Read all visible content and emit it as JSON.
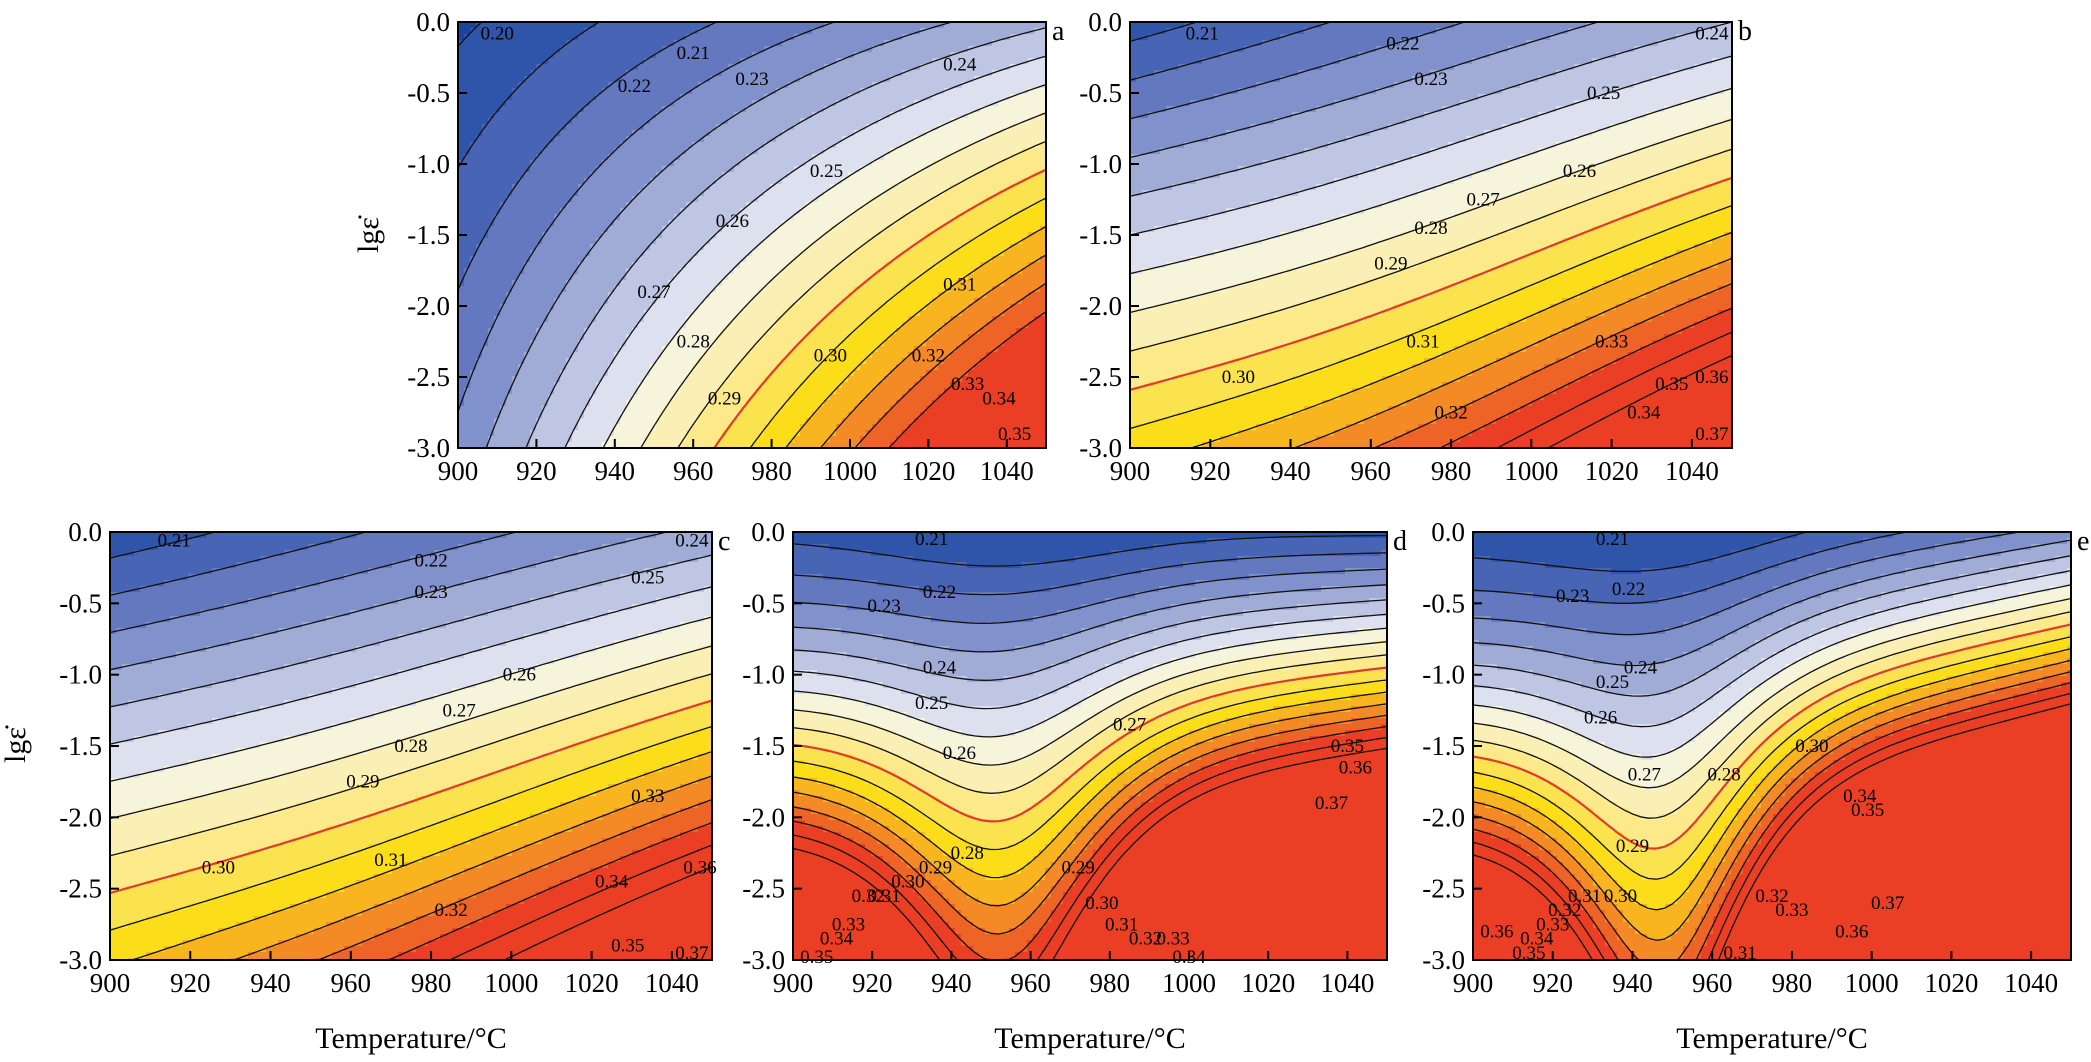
{
  "colors": {
    "levels": [
      "#1b44a2",
      "#2f55ab",
      "#4764b5",
      "#6478c0",
      "#8191cb",
      "#a1acd6",
      "#bfc6e3",
      "#dde1ef",
      "#f7f4dc",
      "#faf0b6",
      "#fbe98a",
      "#fbe34f",
      "#fcdd1a",
      "#f9b51f",
      "#f38a25",
      "#ee6326",
      "#ea3f24"
    ],
    "highlight_contour": "#e03a2a",
    "contour": "#111111"
  },
  "chart_data": [
    {
      "type": "contour",
      "panel": "a",
      "x_ticks": [
        "900",
        "920",
        "940",
        "960",
        "980",
        "1000",
        "1020",
        "1040"
      ],
      "y_ticks": [
        "0.0",
        "-0.5",
        "-1.0",
        "-1.5",
        "-2.0",
        "-2.5",
        "-3.0"
      ],
      "xlim": [
        900,
        1050
      ],
      "ylim": [
        -3.0,
        0.0
      ],
      "xlabel": "",
      "ylabel": "lgε̇",
      "levels": [
        0.2,
        0.21,
        0.22,
        0.23,
        0.24,
        0.25,
        0.26,
        0.27,
        0.28,
        0.29,
        0.3,
        0.31,
        0.32,
        0.33,
        0.34,
        0.35
      ],
      "highlight_level": 0.3,
      "contour_labels": [
        {
          "text": "0.20",
          "x": 910,
          "y": -0.08
        },
        {
          "text": "0.21",
          "x": 960,
          "y": -0.22
        },
        {
          "text": "0.22",
          "x": 945,
          "y": -0.45
        },
        {
          "text": "0.23",
          "x": 975,
          "y": -0.4
        },
        {
          "text": "0.24",
          "x": 1028,
          "y": -0.3
        },
        {
          "text": "0.25",
          "x": 994,
          "y": -1.05
        },
        {
          "text": "0.26",
          "x": 970,
          "y": -1.4
        },
        {
          "text": "0.27",
          "x": 950,
          "y": -1.9
        },
        {
          "text": "0.28",
          "x": 960,
          "y": -2.25
        },
        {
          "text": "0.29",
          "x": 968,
          "y": -2.65
        },
        {
          "text": "0.30",
          "x": 995,
          "y": -2.35
        },
        {
          "text": "0.31",
          "x": 1028,
          "y": -1.85
        },
        {
          "text": "0.32",
          "x": 1020,
          "y": -2.35
        },
        {
          "text": "0.33",
          "x": 1030,
          "y": -2.55
        },
        {
          "text": "0.34",
          "x": 1038,
          "y": -2.65
        },
        {
          "text": "0.35",
          "x": 1042,
          "y": -2.9
        }
      ]
    },
    {
      "type": "contour",
      "panel": "b",
      "x_ticks": [
        "900",
        "920",
        "940",
        "960",
        "980",
        "1000",
        "1020",
        "1040"
      ],
      "y_ticks": [
        "0.0",
        "-0.5",
        "-1.0",
        "-1.5",
        "-2.0",
        "-2.5",
        "-3.0"
      ],
      "xlim": [
        900,
        1050
      ],
      "ylim": [
        -3.0,
        0.0
      ],
      "xlabel": "",
      "ylabel": "",
      "levels": [
        0.21,
        0.22,
        0.23,
        0.24,
        0.25,
        0.26,
        0.27,
        0.28,
        0.29,
        0.3,
        0.31,
        0.32,
        0.33,
        0.34,
        0.35,
        0.36,
        0.37
      ],
      "highlight_level": 0.3,
      "contour_labels": [
        {
          "text": "0.21",
          "x": 918,
          "y": -0.08
        },
        {
          "text": "0.22",
          "x": 968,
          "y": -0.15
        },
        {
          "text": "0.23",
          "x": 975,
          "y": -0.4
        },
        {
          "text": "0.24",
          "x": 1045,
          "y": -0.08
        },
        {
          "text": "0.25",
          "x": 1018,
          "y": -0.5
        },
        {
          "text": "0.26",
          "x": 1012,
          "y": -1.05
        },
        {
          "text": "0.27",
          "x": 988,
          "y": -1.25
        },
        {
          "text": "0.28",
          "x": 975,
          "y": -1.45
        },
        {
          "text": "0.29",
          "x": 965,
          "y": -1.7
        },
        {
          "text": "0.30",
          "x": 927,
          "y": -2.5
        },
        {
          "text": "0.31",
          "x": 973,
          "y": -2.25
        },
        {
          "text": "0.32",
          "x": 980,
          "y": -2.75
        },
        {
          "text": "0.33",
          "x": 1020,
          "y": -2.25
        },
        {
          "text": "0.34",
          "x": 1028,
          "y": -2.75
        },
        {
          "text": "0.35",
          "x": 1035,
          "y": -2.55
        },
        {
          "text": "0.36",
          "x": 1045,
          "y": -2.5
        },
        {
          "text": "0.37",
          "x": 1045,
          "y": -2.9
        }
      ]
    },
    {
      "type": "contour",
      "panel": "c",
      "x_ticks": [
        "900",
        "920",
        "940",
        "960",
        "980",
        "1000",
        "1020",
        "1040"
      ],
      "y_ticks": [
        "0.0",
        "-0.5",
        "-1.0",
        "-1.5",
        "-2.0",
        "-2.5",
        "-3.0"
      ],
      "xlim": [
        900,
        1050
      ],
      "ylim": [
        -3.0,
        0.0
      ],
      "xlabel": "Temperature/°C",
      "ylabel": "lgε̇",
      "levels": [
        0.21,
        0.22,
        0.23,
        0.24,
        0.25,
        0.26,
        0.27,
        0.28,
        0.29,
        0.3,
        0.31,
        0.32,
        0.33,
        0.34,
        0.35,
        0.36,
        0.37
      ],
      "highlight_level": 0.3,
      "contour_labels": [
        {
          "text": "0.21",
          "x": 916,
          "y": -0.06
        },
        {
          "text": "0.22",
          "x": 980,
          "y": -0.2
        },
        {
          "text": "0.23",
          "x": 980,
          "y": -0.42
        },
        {
          "text": "0.24",
          "x": 1045,
          "y": -0.06
        },
        {
          "text": "0.25",
          "x": 1034,
          "y": -0.32
        },
        {
          "text": "0.26",
          "x": 1002,
          "y": -1.0
        },
        {
          "text": "0.27",
          "x": 987,
          "y": -1.25
        },
        {
          "text": "0.28",
          "x": 975,
          "y": -1.5
        },
        {
          "text": "0.29",
          "x": 963,
          "y": -1.75
        },
        {
          "text": "0.30",
          "x": 927,
          "y": -2.35
        },
        {
          "text": "0.31",
          "x": 970,
          "y": -2.3
        },
        {
          "text": "0.32",
          "x": 985,
          "y": -2.65
        },
        {
          "text": "0.33",
          "x": 1034,
          "y": -1.85
        },
        {
          "text": "0.34",
          "x": 1025,
          "y": -2.45
        },
        {
          "text": "0.35",
          "x": 1029,
          "y": -2.9
        },
        {
          "text": "0.36",
          "x": 1047,
          "y": -2.35
        },
        {
          "text": "0.37",
          "x": 1045,
          "y": -2.95
        }
      ]
    },
    {
      "type": "contour",
      "panel": "d",
      "x_ticks": [
        "900",
        "920",
        "940",
        "960",
        "980",
        "1000",
        "1020",
        "1040"
      ],
      "y_ticks": [
        "0.0",
        "-0.5",
        "-1.0",
        "-1.5",
        "-2.0",
        "-2.5",
        "-3.0"
      ],
      "xlim": [
        900,
        1050
      ],
      "ylim": [
        -3.0,
        0.0
      ],
      "xlabel": "Temperature/°C",
      "ylabel": "",
      "levels": [
        0.21,
        0.22,
        0.23,
        0.24,
        0.25,
        0.26,
        0.27,
        0.28,
        0.29,
        0.3,
        0.31,
        0.32,
        0.33,
        0.34,
        0.35,
        0.36,
        0.37
      ],
      "highlight_level": 0.3,
      "contour_labels": [
        {
          "text": "0.21",
          "x": 935,
          "y": -0.05
        },
        {
          "text": "0.22",
          "x": 937,
          "y": -0.42
        },
        {
          "text": "0.23",
          "x": 923,
          "y": -0.52
        },
        {
          "text": "0.24",
          "x": 937,
          "y": -0.95
        },
        {
          "text": "0.25",
          "x": 935,
          "y": -1.2
        },
        {
          "text": "0.26",
          "x": 942,
          "y": -1.55
        },
        {
          "text": "0.27",
          "x": 985,
          "y": -1.35
        },
        {
          "text": "0.28",
          "x": 944,
          "y": -2.25
        },
        {
          "text": "0.29",
          "x": 936,
          "y": -2.35
        },
        {
          "text": "0.30",
          "x": 929,
          "y": -2.45
        },
        {
          "text": "0.29",
          "x": 972,
          "y": -2.35
        },
        {
          "text": "0.30",
          "x": 978,
          "y": -2.6
        },
        {
          "text": "0.31",
          "x": 983,
          "y": -2.75
        },
        {
          "text": "0.32",
          "x": 989,
          "y": -2.85
        },
        {
          "text": "0.33",
          "x": 996,
          "y": -2.85
        },
        {
          "text": "0.34",
          "x": 1000,
          "y": -2.98
        },
        {
          "text": "0.35",
          "x": 1040,
          "y": -1.5
        },
        {
          "text": "0.36",
          "x": 1042,
          "y": -1.65
        },
        {
          "text": "0.37",
          "x": 1036,
          "y": -1.9
        },
        {
          "text": "0.31",
          "x": 923,
          "y": -2.55
        },
        {
          "text": "0.32",
          "x": 919,
          "y": -2.55
        },
        {
          "text": "0.33",
          "x": 914,
          "y": -2.75
        },
        {
          "text": "0.34",
          "x": 911,
          "y": -2.85
        },
        {
          "text": "0.35",
          "x": 906,
          "y": -2.98
        }
      ]
    },
    {
      "type": "contour",
      "panel": "e",
      "x_ticks": [
        "900",
        "920",
        "940",
        "960",
        "980",
        "1000",
        "1020",
        "1040"
      ],
      "y_ticks": [
        "0.0",
        "-0.5",
        "-1.0",
        "-1.5",
        "-2.0",
        "-2.5",
        "-3.0"
      ],
      "xlim": [
        900,
        1050
      ],
      "ylim": [
        -3.0,
        0.0
      ],
      "xlabel": "Temperature/°C",
      "ylabel": "",
      "levels": [
        0.21,
        0.22,
        0.23,
        0.24,
        0.25,
        0.26,
        0.27,
        0.28,
        0.29,
        0.3,
        0.31,
        0.32,
        0.33,
        0.34,
        0.35,
        0.36,
        0.37
      ],
      "highlight_level": 0.3,
      "contour_labels": [
        {
          "text": "0.21",
          "x": 935,
          "y": -0.05
        },
        {
          "text": "0.22",
          "x": 939,
          "y": -0.4
        },
        {
          "text": "0.23",
          "x": 925,
          "y": -0.45
        },
        {
          "text": "0.24",
          "x": 942,
          "y": -0.95
        },
        {
          "text": "0.25",
          "x": 935,
          "y": -1.05
        },
        {
          "text": "0.26",
          "x": 932,
          "y": -1.3
        },
        {
          "text": "0.27",
          "x": 943,
          "y": -1.7
        },
        {
          "text": "0.28",
          "x": 963,
          "y": -1.7
        },
        {
          "text": "0.29",
          "x": 940,
          "y": -2.2
        },
        {
          "text": "0.30",
          "x": 985,
          "y": -1.5
        },
        {
          "text": "0.30",
          "x": 937,
          "y": -2.55
        },
        {
          "text": "0.31",
          "x": 928,
          "y": -2.55
        },
        {
          "text": "0.32",
          "x": 923,
          "y": -2.65
        },
        {
          "text": "0.33",
          "x": 920,
          "y": -2.75
        },
        {
          "text": "0.34",
          "x": 916,
          "y": -2.85
        },
        {
          "text": "0.35",
          "x": 914,
          "y": -2.95
        },
        {
          "text": "0.36",
          "x": 906,
          "y": -2.8
        },
        {
          "text": "0.31",
          "x": 967,
          "y": -2.95
        },
        {
          "text": "0.32",
          "x": 975,
          "y": -2.55
        },
        {
          "text": "0.33",
          "x": 980,
          "y": -2.65
        },
        {
          "text": "0.34",
          "x": 997,
          "y": -1.85
        },
        {
          "text": "0.35",
          "x": 999,
          "y": -1.95
        },
        {
          "text": "0.36",
          "x": 995,
          "y": -2.8
        },
        {
          "text": "0.37",
          "x": 1004,
          "y": -2.6
        }
      ]
    }
  ]
}
